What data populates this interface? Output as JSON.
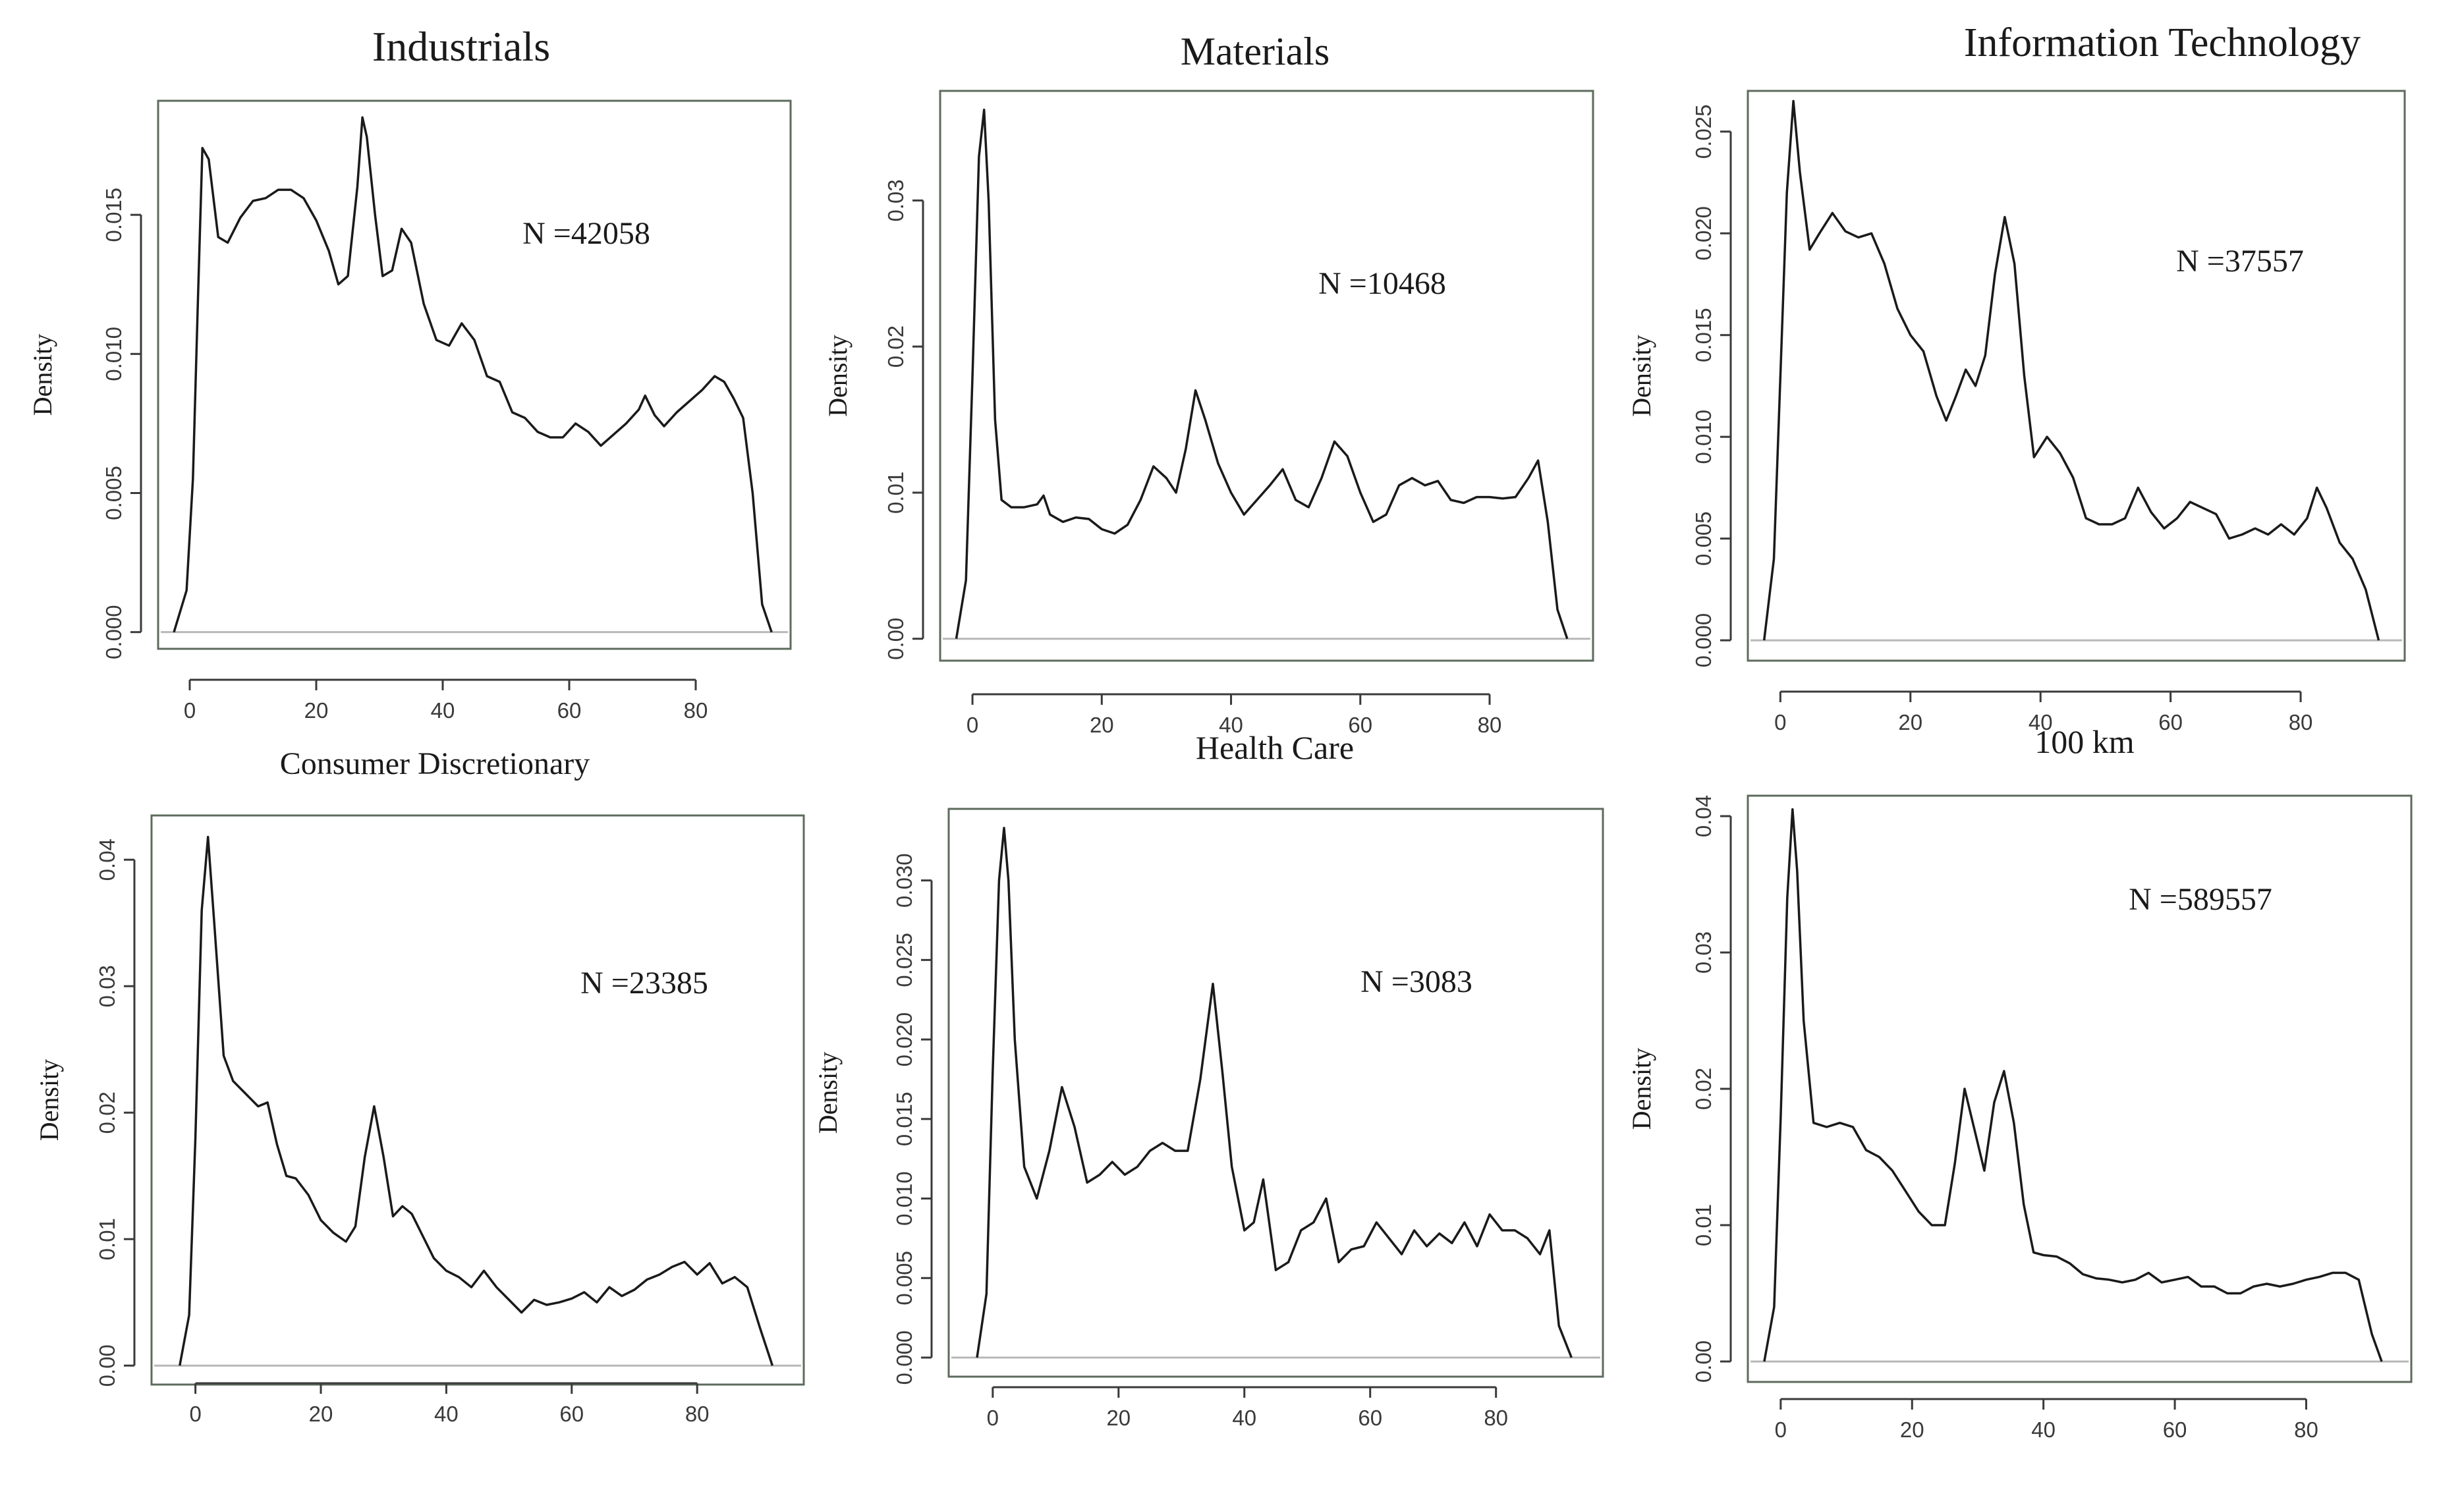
{
  "chart_data": [
    {
      "type": "line",
      "title": "Industrials",
      "annotation": "N =42058",
      "xlabel": "",
      "ylabel": "Density",
      "xlim": [
        -5,
        95
      ],
      "ylim": [
        -0.0006,
        0.0191
      ],
      "xticks": [
        0,
        20,
        40,
        60,
        80
      ],
      "xtick_labels": [
        "0",
        "20",
        "40",
        "60",
        "80"
      ],
      "yticks": [
        0,
        0.005,
        0.01,
        0.015
      ],
      "ytick_labels": [
        "0.000",
        "0.005",
        "0.010",
        "0.015"
      ],
      "x": [
        -2.5,
        -0.5,
        0.5,
        1.3,
        2.0,
        3.0,
        4.5,
        6.0,
        8,
        10,
        12,
        14,
        16,
        18,
        20,
        22,
        23.5,
        25,
        26.5,
        27.3,
        28,
        29.3,
        30.5,
        32,
        33.5,
        35,
        37,
        39,
        41,
        43,
        45,
        47,
        49,
        51,
        53,
        55,
        57,
        59,
        61,
        63,
        65,
        67,
        69,
        71,
        72,
        73.5,
        75,
        77,
        79,
        81,
        83,
        84.5,
        86,
        87.5,
        89,
        90.5,
        92
      ],
      "y": [
        0.0,
        0.0015,
        0.0055,
        0.012,
        0.0174,
        0.017,
        0.0142,
        0.014,
        0.0149,
        0.0155,
        0.0156,
        0.0159,
        0.0159,
        0.0156,
        0.0148,
        0.0137,
        0.0125,
        0.0128,
        0.016,
        0.0185,
        0.0178,
        0.015,
        0.0128,
        0.013,
        0.0145,
        0.014,
        0.0118,
        0.0105,
        0.0103,
        0.0111,
        0.0105,
        0.0092,
        0.009,
        0.0079,
        0.0077,
        0.0072,
        0.007,
        0.007,
        0.0075,
        0.0072,
        0.0067,
        0.0071,
        0.0075,
        0.008,
        0.0085,
        0.0078,
        0.0074,
        0.0079,
        0.0083,
        0.0087,
        0.0092,
        0.009,
        0.0084,
        0.0077,
        0.005,
        0.001,
        0.0
      ]
    },
    {
      "type": "line",
      "title": "Materials",
      "annotation": "N =10468",
      "xlabel": "",
      "ylabel": "Density",
      "xlim": [
        -5,
        96
      ],
      "ylim": [
        -0.0015,
        0.0375
      ],
      "xticks": [
        0,
        20,
        40,
        60,
        80
      ],
      "xtick_labels": [
        "0",
        "20",
        "40",
        "60",
        "80"
      ],
      "yticks": [
        0,
        0.01,
        0.02,
        0.03
      ],
      "ytick_labels": [
        "0.00",
        "0.01",
        "0.02",
        "0.03"
      ],
      "x": [
        -2.5,
        -1,
        0,
        1,
        1.8,
        2.5,
        3.5,
        4.5,
        6,
        8,
        10,
        11,
        12,
        14,
        16,
        18,
        20,
        22,
        24,
        26,
        28,
        30,
        31.5,
        33,
        34.5,
        36,
        38,
        40,
        42,
        44,
        46,
        48,
        50,
        52,
        54,
        56,
        58,
        60,
        62,
        64,
        66,
        68,
        70,
        72,
        74,
        76,
        78,
        80,
        82,
        84,
        86,
        87.5,
        89,
        90.5,
        92
      ],
      "y": [
        0.0,
        0.004,
        0.018,
        0.033,
        0.0362,
        0.03,
        0.015,
        0.0095,
        0.009,
        0.009,
        0.0092,
        0.0098,
        0.0085,
        0.008,
        0.0083,
        0.0082,
        0.0075,
        0.0072,
        0.0078,
        0.0095,
        0.0118,
        0.011,
        0.01,
        0.013,
        0.017,
        0.015,
        0.012,
        0.01,
        0.0085,
        0.0095,
        0.0105,
        0.0116,
        0.0095,
        0.009,
        0.011,
        0.0135,
        0.0125,
        0.01,
        0.008,
        0.0085,
        0.0105,
        0.011,
        0.0105,
        0.0108,
        0.0095,
        0.0093,
        0.0097,
        0.0097,
        0.0096,
        0.0097,
        0.011,
        0.0122,
        0.008,
        0.002,
        0.0
      ]
    },
    {
      "type": "line",
      "title": "Information Technology",
      "annotation": "N =37557",
      "xlabel": "",
      "ylabel": "Density",
      "xlim": [
        -5,
        96
      ],
      "ylim": [
        -0.001,
        0.027
      ],
      "xticks": [
        0,
        20,
        40,
        60,
        80
      ],
      "xtick_labels": [
        "0",
        "20",
        "40",
        "60",
        "80"
      ],
      "yticks": [
        0,
        0.005,
        0.01,
        0.015,
        0.02,
        0.025
      ],
      "ytick_labels": [
        "0.000",
        "0.005",
        "0.010",
        "0.015",
        "0.020",
        "0.025"
      ],
      "x": [
        -2.5,
        -1,
        0,
        1,
        2,
        3,
        4.5,
        6,
        8,
        10,
        12,
        14,
        16,
        18,
        20,
        22,
        24,
        25.5,
        27,
        28.5,
        30,
        31.5,
        33,
        34.5,
        36,
        37.5,
        39,
        41,
        43,
        45,
        47,
        49,
        51,
        53,
        55,
        57,
        59,
        61,
        63,
        65,
        67,
        69,
        71,
        73,
        75,
        77,
        79,
        81,
        82.5,
        84,
        86,
        88,
        90,
        92
      ],
      "y": [
        0.0,
        0.004,
        0.013,
        0.022,
        0.0265,
        0.023,
        0.0192,
        0.02,
        0.021,
        0.0201,
        0.0198,
        0.02,
        0.0185,
        0.0163,
        0.015,
        0.0142,
        0.012,
        0.0108,
        0.012,
        0.0133,
        0.0125,
        0.014,
        0.018,
        0.0208,
        0.0185,
        0.013,
        0.009,
        0.01,
        0.0092,
        0.008,
        0.006,
        0.0057,
        0.0057,
        0.006,
        0.0075,
        0.0063,
        0.0055,
        0.006,
        0.0068,
        0.0065,
        0.0062,
        0.005,
        0.0052,
        0.0055,
        0.0052,
        0.0057,
        0.0052,
        0.006,
        0.0075,
        0.0065,
        0.0048,
        0.004,
        0.0025,
        0.0
      ]
    },
    {
      "type": "line",
      "title": "Consumer Discretionary",
      "annotation": "N =23385",
      "xlabel": "",
      "ylabel": "Density",
      "xlim": [
        -7,
        97
      ],
      "ylim": [
        -0.0015,
        0.0435
      ],
      "xticks": [
        0,
        20,
        40,
        60,
        80
      ],
      "xtick_labels": [
        "0",
        "20",
        "40",
        "60",
        "80"
      ],
      "yticks": [
        0,
        0.01,
        0.02,
        0.03,
        0.04
      ],
      "ytick_labels": [
        "0.00",
        "0.01",
        "0.02",
        "0.03",
        "0.04"
      ],
      "x": [
        -2.5,
        -1,
        0,
        1,
        2,
        3,
        4.5,
        6,
        8,
        10,
        11.5,
        13,
        14.5,
        16,
        18,
        20,
        22,
        24,
        25.5,
        27,
        28.5,
        30,
        31.5,
        33,
        34.5,
        36,
        38,
        40,
        42,
        44,
        46,
        48,
        50,
        52,
        54,
        56,
        58,
        60,
        62,
        64,
        66,
        68,
        70,
        72,
        74,
        76,
        78,
        80,
        82,
        84,
        86,
        88,
        90,
        92
      ],
      "y": [
        0.0,
        0.004,
        0.018,
        0.036,
        0.0418,
        0.035,
        0.0245,
        0.0225,
        0.0215,
        0.0205,
        0.0208,
        0.0175,
        0.015,
        0.0148,
        0.0135,
        0.0115,
        0.0105,
        0.0098,
        0.011,
        0.0165,
        0.0205,
        0.0165,
        0.0118,
        0.0126,
        0.012,
        0.0105,
        0.0085,
        0.0075,
        0.007,
        0.0062,
        0.0075,
        0.0062,
        0.0052,
        0.0042,
        0.0052,
        0.0048,
        0.005,
        0.0053,
        0.0058,
        0.005,
        0.0062,
        0.0055,
        0.006,
        0.0068,
        0.0072,
        0.0078,
        0.0082,
        0.0072,
        0.0081,
        0.0065,
        0.007,
        0.0062,
        0.003,
        0.0
      ]
    },
    {
      "type": "line",
      "title": "Health Care",
      "annotation": "N =3083",
      "xlabel": "",
      "ylabel": "Density",
      "xlim": [
        -7,
        97
      ],
      "ylim": [
        -0.0012,
        0.0345
      ],
      "xticks": [
        0,
        20,
        40,
        60,
        80
      ],
      "xtick_labels": [
        "0",
        "20",
        "40",
        "60",
        "80"
      ],
      "yticks": [
        0,
        0.005,
        0.01,
        0.015,
        0.02,
        0.025,
        0.03
      ],
      "ytick_labels": [
        "0.000",
        "0.005",
        "0.010",
        "0.015",
        "0.020",
        "0.025",
        "0.030"
      ],
      "x": [
        -2.5,
        -1,
        0,
        1,
        1.8,
        2.5,
        3.5,
        5,
        7,
        9,
        11,
        13,
        15,
        17,
        19,
        21,
        23,
        25,
        27,
        29,
        31,
        33,
        35,
        36.5,
        38,
        40,
        41.5,
        43,
        45,
        47,
        49,
        51,
        53,
        55,
        57,
        59,
        61,
        63,
        65,
        67,
        69,
        71,
        73,
        75,
        77,
        79,
        81,
        83,
        85,
        87,
        88.5,
        90,
        92
      ],
      "y": [
        0.0,
        0.004,
        0.018,
        0.03,
        0.0333,
        0.03,
        0.02,
        0.012,
        0.01,
        0.013,
        0.017,
        0.0145,
        0.011,
        0.0115,
        0.0123,
        0.0115,
        0.012,
        0.013,
        0.0135,
        0.013,
        0.013,
        0.0175,
        0.0235,
        0.018,
        0.012,
        0.008,
        0.0085,
        0.0112,
        0.0055,
        0.006,
        0.008,
        0.0085,
        0.01,
        0.006,
        0.0068,
        0.007,
        0.0085,
        0.0075,
        0.0065,
        0.008,
        0.007,
        0.0078,
        0.0072,
        0.0085,
        0.007,
        0.009,
        0.008,
        0.008,
        0.0075,
        0.0065,
        0.008,
        0.002,
        0.0
      ]
    },
    {
      "type": "line",
      "title": "100 km",
      "annotation": "N =589557",
      "xlabel": "",
      "ylabel": "Density",
      "xlim": [
        -5,
        96
      ],
      "ylim": [
        -0.0015,
        0.0415
      ],
      "xticks": [
        0,
        20,
        40,
        60,
        80
      ],
      "xtick_labels": [
        "0",
        "20",
        "40",
        "60",
        "80"
      ],
      "yticks": [
        0,
        0.01,
        0.02,
        0.03,
        0.04
      ],
      "ytick_labels": [
        "0.00",
        "0.01",
        "0.02",
        "0.03",
        "0.04"
      ],
      "x": [
        -2.5,
        -1,
        0,
        1,
        1.8,
        2.5,
        3.5,
        5,
        7,
        9,
        11,
        13,
        15,
        17,
        19,
        21,
        23,
        25,
        26.5,
        28,
        29.5,
        31,
        32.5,
        34,
        35.5,
        37,
        38.5,
        40,
        42,
        44,
        46,
        48,
        50,
        52,
        54,
        56,
        58,
        60,
        62,
        64,
        66,
        68,
        70,
        72,
        74,
        76,
        78,
        80,
        82,
        84,
        86,
        88,
        90,
        91.5
      ],
      "y": [
        0.0,
        0.004,
        0.018,
        0.034,
        0.0405,
        0.036,
        0.025,
        0.0175,
        0.0172,
        0.0175,
        0.0172,
        0.0155,
        0.015,
        0.014,
        0.0125,
        0.011,
        0.01,
        0.01,
        0.0145,
        0.02,
        0.017,
        0.014,
        0.019,
        0.0213,
        0.0175,
        0.0115,
        0.008,
        0.0078,
        0.0077,
        0.0072,
        0.0064,
        0.0061,
        0.006,
        0.0058,
        0.006,
        0.0065,
        0.0058,
        0.006,
        0.0062,
        0.0055,
        0.0055,
        0.005,
        0.005,
        0.0055,
        0.0057,
        0.0055,
        0.0057,
        0.006,
        0.0062,
        0.0065,
        0.0065,
        0.006,
        0.002,
        0.0
      ]
    }
  ]
}
